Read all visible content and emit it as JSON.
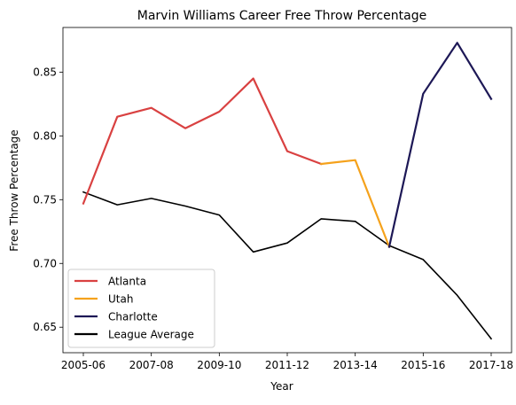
{
  "chart_data": {
    "type": "line",
    "title": "Marvin Williams Career Free Throw Percentage",
    "xlabel": "Year",
    "ylabel": "Free Throw Percentage",
    "x_tick_labels": [
      "2005-06",
      "2007-08",
      "2009-10",
      "2011-12",
      "2013-14",
      "2015-16",
      "2017-18"
    ],
    "x_tick_positions": [
      0,
      2,
      4,
      6,
      8,
      10,
      12
    ],
    "xlim": [
      -0.6,
      12.6
    ],
    "yticks": [
      0.65,
      0.7,
      0.75,
      0.8,
      0.85
    ],
    "ytick_labels": [
      "0.65",
      "0.70",
      "0.75",
      "0.80",
      "0.85"
    ],
    "ylim": [
      0.63,
      0.885
    ],
    "grid": false,
    "legend_position": "bottom-left",
    "series": [
      {
        "name": "Atlanta",
        "color": "#d94141",
        "x": [
          0,
          1,
          2,
          3,
          4,
          5,
          6,
          7
        ],
        "y": [
          0.747,
          0.815,
          0.822,
          0.806,
          0.819,
          0.845,
          0.788,
          0.778
        ]
      },
      {
        "name": "Utah",
        "color": "#f5a21c",
        "x": [
          7,
          8,
          9
        ],
        "y": [
          0.778,
          0.781,
          0.713
        ]
      },
      {
        "name": "Charlotte",
        "color": "#1d1856",
        "x": [
          9,
          10,
          11,
          12
        ],
        "y": [
          0.713,
          0.833,
          0.873,
          0.829
        ]
      },
      {
        "name": "League Average",
        "color": "#000000",
        "x": [
          0,
          1,
          2,
          3,
          4,
          5,
          6,
          7,
          8,
          9,
          10,
          11,
          12
        ],
        "y": [
          0.756,
          0.746,
          0.751,
          0.745,
          0.738,
          0.709,
          0.716,
          0.735,
          0.733,
          0.714,
          0.703,
          0.675,
          0.641
        ]
      }
    ]
  }
}
